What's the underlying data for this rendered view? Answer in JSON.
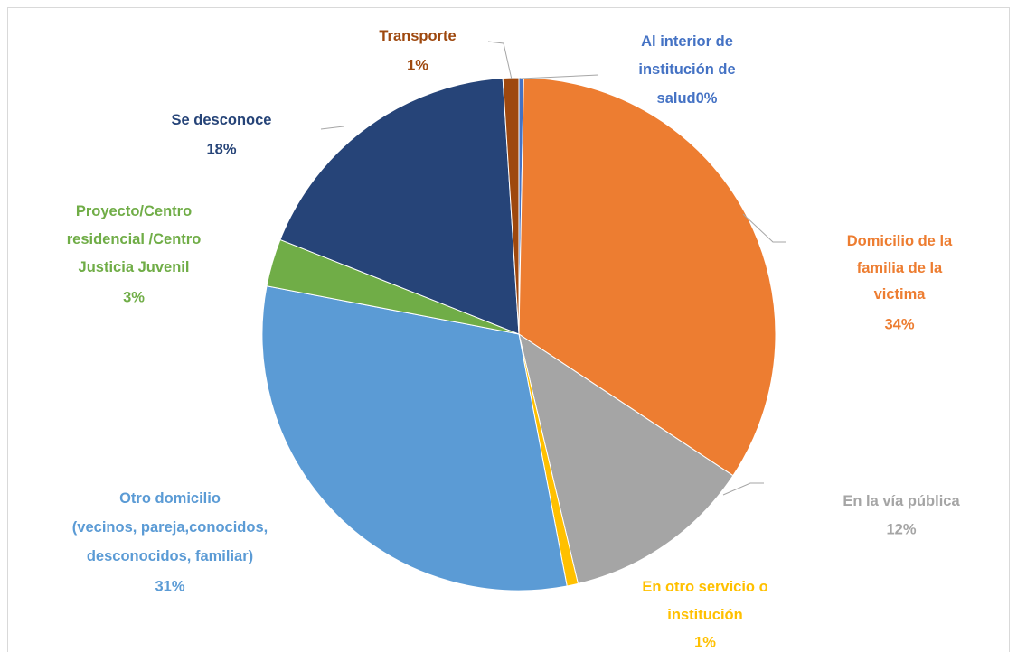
{
  "chart_data": {
    "type": "pie",
    "categories": [
      [
        "Al interior de",
        "institución de",
        "salud"
      ],
      [
        "Domicilio de la",
        "familia de la",
        "victima"
      ],
      [
        "En la vía pública"
      ],
      [
        "En otro servicio o",
        "institución"
      ],
      [
        "Otro domicilio",
        "(vecinos, pareja,conocidos,",
        "desconocidos, familiar)"
      ],
      [
        "Proyecto/Centro",
        "residencial /Centro",
        "Justicia Juvenil"
      ],
      [
        "Se desconoce"
      ],
      [
        "Transporte"
      ]
    ],
    "values": [
      0.3,
      34,
      12,
      0.7,
      31,
      3,
      18,
      1
    ],
    "value_labels": [
      "0%",
      "34%",
      "12%",
      "1%",
      "31%",
      "3%",
      "18%",
      "1%"
    ],
    "colors": [
      "#4472c4",
      "#ed7d31",
      "#a5a5a5",
      "#ffc000",
      "#5b9bd5",
      "#70ad47",
      "#264478",
      "#9e480e"
    ]
  }
}
